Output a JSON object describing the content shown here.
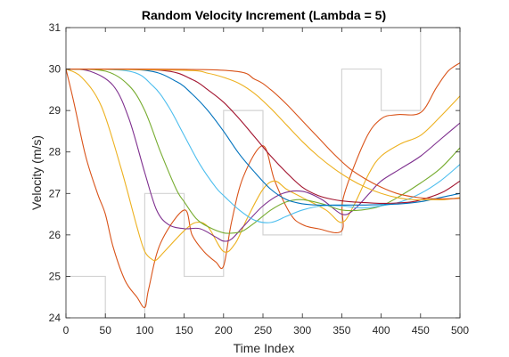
{
  "chart_data": {
    "type": "line",
    "title": "Random Velocity Increment (Lambda = 5)",
    "xlabel": "Time Index",
    "ylabel": "Velocity (m/s)",
    "xlim": [
      0,
      500
    ],
    "ylim": [
      24,
      31
    ],
    "xticks": [
      "0",
      "50",
      "100",
      "150",
      "200",
      "250",
      "300",
      "350",
      "400",
      "450",
      "500"
    ],
    "yticks": [
      "24",
      "25",
      "26",
      "27",
      "28",
      "29",
      "30",
      "31"
    ],
    "grid": false,
    "legend": "none",
    "reference": {
      "color": "#d3d3d3",
      "style": "step",
      "x": [
        0,
        50,
        50,
        100,
        100,
        150,
        150,
        200,
        200,
        250,
        250,
        300,
        300,
        350,
        350,
        400,
        400,
        450,
        450,
        500
      ],
      "y": [
        25,
        25,
        24,
        24,
        27,
        27,
        25,
        25,
        29,
        29,
        26,
        26,
        26,
        26,
        30,
        30,
        29,
        29,
        31,
        31
      ]
    },
    "series": [
      {
        "color": "#D95319",
        "x": [
          0,
          10,
          25,
          40,
          50,
          60,
          75,
          90,
          100,
          105,
          120,
          150,
          160,
          175,
          190,
          200,
          210,
          225,
          250,
          265,
          285,
          300,
          320,
          350,
          352,
          380,
          400,
          420,
          450,
          470,
          485,
          500
        ],
        "y": [
          30,
          29.2,
          27.9,
          27,
          26.5,
          25.7,
          24.9,
          24.5,
          24.25,
          24.7,
          25.8,
          26.6,
          26.0,
          25.6,
          25.35,
          25.25,
          26.3,
          27.4,
          28.15,
          27.3,
          26.5,
          26.25,
          26.15,
          26.1,
          26.9,
          28.3,
          28.8,
          28.9,
          28.95,
          29.55,
          29.95,
          30.15
        ]
      },
      {
        "color": "#EDB120",
        "x": [
          0,
          20,
          45,
          70,
          90,
          100,
          110,
          115,
          125,
          150,
          165,
          180,
          200,
          215,
          230,
          250,
          265,
          280,
          300,
          330,
          350,
          365,
          385,
          400,
          425,
          450,
          475,
          500
        ],
        "y": [
          30,
          29.8,
          29.1,
          27.6,
          26.2,
          25.6,
          25.4,
          25.4,
          25.6,
          26.1,
          26.3,
          26.2,
          25.6,
          25.8,
          26.4,
          27.1,
          27.3,
          27.1,
          26.9,
          26.6,
          26.3,
          26.7,
          27.5,
          27.9,
          28.2,
          28.4,
          28.85,
          29.35
        ]
      },
      {
        "color": "#7E2F8E",
        "x": [
          0,
          30,
          60,
          80,
          100,
          115,
          130,
          150,
          170,
          190,
          200,
          210,
          225,
          250,
          275,
          300,
          325,
          350,
          365,
          385,
          400,
          425,
          450,
          475,
          500
        ],
        "y": [
          30,
          29.95,
          29.6,
          28.8,
          27.5,
          26.6,
          26.25,
          26.15,
          26.15,
          25.95,
          25.85,
          25.9,
          26.2,
          26.7,
          27.0,
          27.05,
          26.85,
          26.5,
          26.6,
          27.0,
          27.3,
          27.6,
          27.9,
          28.3,
          28.7
        ]
      },
      {
        "color": "#77AC30",
        "x": [
          0,
          50,
          80,
          100,
          120,
          140,
          150,
          165,
          180,
          200,
          215,
          225,
          240,
          260,
          280,
          300,
          325,
          350,
          375,
          400,
          425,
          450,
          475,
          500
        ],
        "y": [
          30,
          29.95,
          29.6,
          29.0,
          28.0,
          27.1,
          26.8,
          26.4,
          26.2,
          26.05,
          26.05,
          26.1,
          26.3,
          26.6,
          26.8,
          26.85,
          26.75,
          26.6,
          26.6,
          26.7,
          26.95,
          27.25,
          27.6,
          28.1
        ]
      },
      {
        "color": "#4DBEEE",
        "x": [
          0,
          80,
          110,
          130,
          150,
          170,
          190,
          200,
          220,
          240,
          260,
          280,
          300,
          325,
          350,
          375,
          400,
          425,
          450,
          475,
          500
        ],
        "y": [
          30,
          29.95,
          29.6,
          29.1,
          28.4,
          27.7,
          27.15,
          26.95,
          26.6,
          26.35,
          26.3,
          26.45,
          26.6,
          26.7,
          26.7,
          26.65,
          26.7,
          26.8,
          27.0,
          27.3,
          27.7
        ]
      },
      {
        "color": "#0072BD",
        "x": [
          0,
          100,
          140,
          160,
          180,
          200,
          220,
          240,
          260,
          280,
          300,
          320,
          340,
          360,
          380,
          400,
          425,
          450,
          475,
          500
        ],
        "y": [
          30,
          29.97,
          29.7,
          29.4,
          29.0,
          28.5,
          27.95,
          27.5,
          27.1,
          26.85,
          26.75,
          26.72,
          26.72,
          26.72,
          26.72,
          26.73,
          26.75,
          26.8,
          26.9,
          27.0
        ]
      },
      {
        "color": "#A2142F",
        "x": [
          0,
          120,
          160,
          180,
          200,
          220,
          240,
          260,
          280,
          300,
          320,
          340,
          360,
          380,
          400,
          420,
          440,
          460,
          480,
          500
        ],
        "y": [
          30,
          29.97,
          29.75,
          29.5,
          29.2,
          28.8,
          28.35,
          27.9,
          27.5,
          27.15,
          26.95,
          26.85,
          26.8,
          26.78,
          26.76,
          26.77,
          26.8,
          26.9,
          27.05,
          27.3
        ]
      },
      {
        "color": "#EDB120",
        "x": [
          0,
          150,
          180,
          200,
          220,
          240,
          260,
          280,
          300,
          320,
          340,
          360,
          380,
          400,
          420,
          440,
          460,
          480,
          500
        ],
        "y": [
          30,
          29.97,
          29.9,
          29.8,
          29.65,
          29.4,
          29.05,
          28.65,
          28.25,
          27.9,
          27.6,
          27.35,
          27.15,
          27.0,
          26.9,
          26.85,
          26.85,
          26.85,
          26.9
        ]
      },
      {
        "color": "#D95319",
        "x": [
          0,
          200,
          240,
          260,
          280,
          300,
          320,
          340,
          360,
          380,
          400,
          420,
          440,
          460,
          480,
          500
        ],
        "y": [
          30,
          29.97,
          29.75,
          29.5,
          29.15,
          28.75,
          28.35,
          27.95,
          27.6,
          27.35,
          27.15,
          27.0,
          26.92,
          26.88,
          26.87,
          26.88
        ]
      }
    ]
  }
}
